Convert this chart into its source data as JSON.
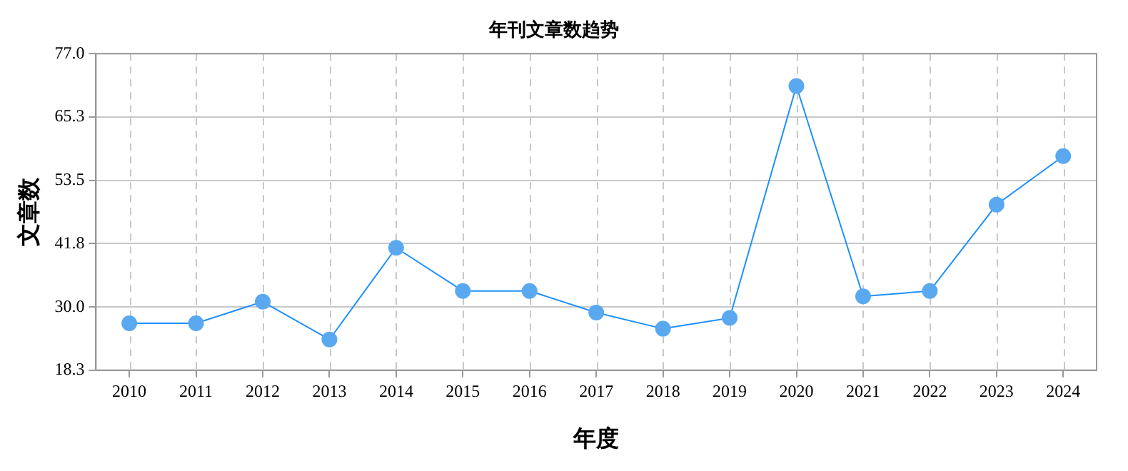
{
  "chart_data": {
    "type": "line",
    "title": "年刊文章数趋势",
    "xlabel": "年度",
    "ylabel": "文章数",
    "categories": [
      "2010",
      "2011",
      "2012",
      "2013",
      "2014",
      "2015",
      "2016",
      "2017",
      "2018",
      "2019",
      "2020",
      "2021",
      "2022",
      "2023",
      "2024"
    ],
    "series": [
      {
        "color": "#1e90ff",
        "values": [
          27,
          27,
          31,
          24,
          41,
          33,
          33,
          29,
          26,
          28,
          71,
          32,
          33,
          49,
          58
        ]
      }
    ],
    "ylim": [
      18.3,
      77.0
    ],
    "yticks": [
      {
        "value": 18.3,
        "label": "18.3"
      },
      {
        "value": 30,
        "label": "30.0"
      },
      {
        "value": 41.8,
        "label": "41.8"
      },
      {
        "value": 53.5,
        "label": "53.5"
      },
      {
        "value": 65.3,
        "label": "65.3"
      },
      {
        "value": 77,
        "label": "77.0"
      }
    ],
    "grid": true,
    "marker": "circle",
    "line_style": "solid",
    "legend": false
  }
}
